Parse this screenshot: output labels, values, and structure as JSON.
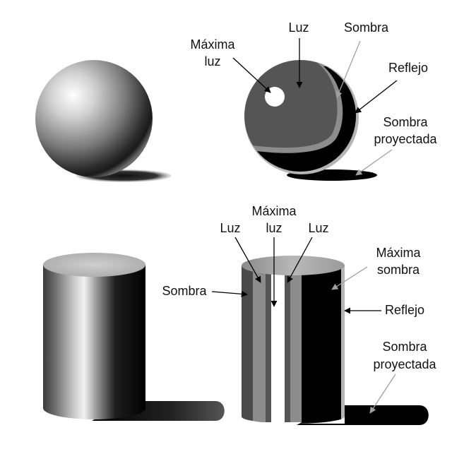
{
  "labels": {
    "top": {
      "max_light_line1": "Máxima",
      "max_light_line2": "luz",
      "light": "Luz",
      "shadow": "Sombra",
      "reflection": "Reflejo",
      "cast_shadow_line1": "Sombra",
      "cast_shadow_line2": "proyectada"
    },
    "bottom": {
      "max_light_line1": "Máxima",
      "max_light_line2": "luz",
      "light_left": "Luz",
      "light_right": "Luz",
      "shadow": "Sombra",
      "max_shadow_line1": "Máxima",
      "max_shadow_line2": "sombra",
      "reflection": "Reflejo",
      "cast_shadow_line1": "Sombra",
      "cast_shadow_line2": "proyectada"
    }
  },
  "colors": {
    "light": "#555555",
    "highlight": "#ffffff",
    "core_shadow": "#000000",
    "halftone": "#8c8c8c",
    "reflected_light": "#b5b5b5",
    "arrow_black": "#000000",
    "arrow_gray": "#a0a0a0"
  }
}
